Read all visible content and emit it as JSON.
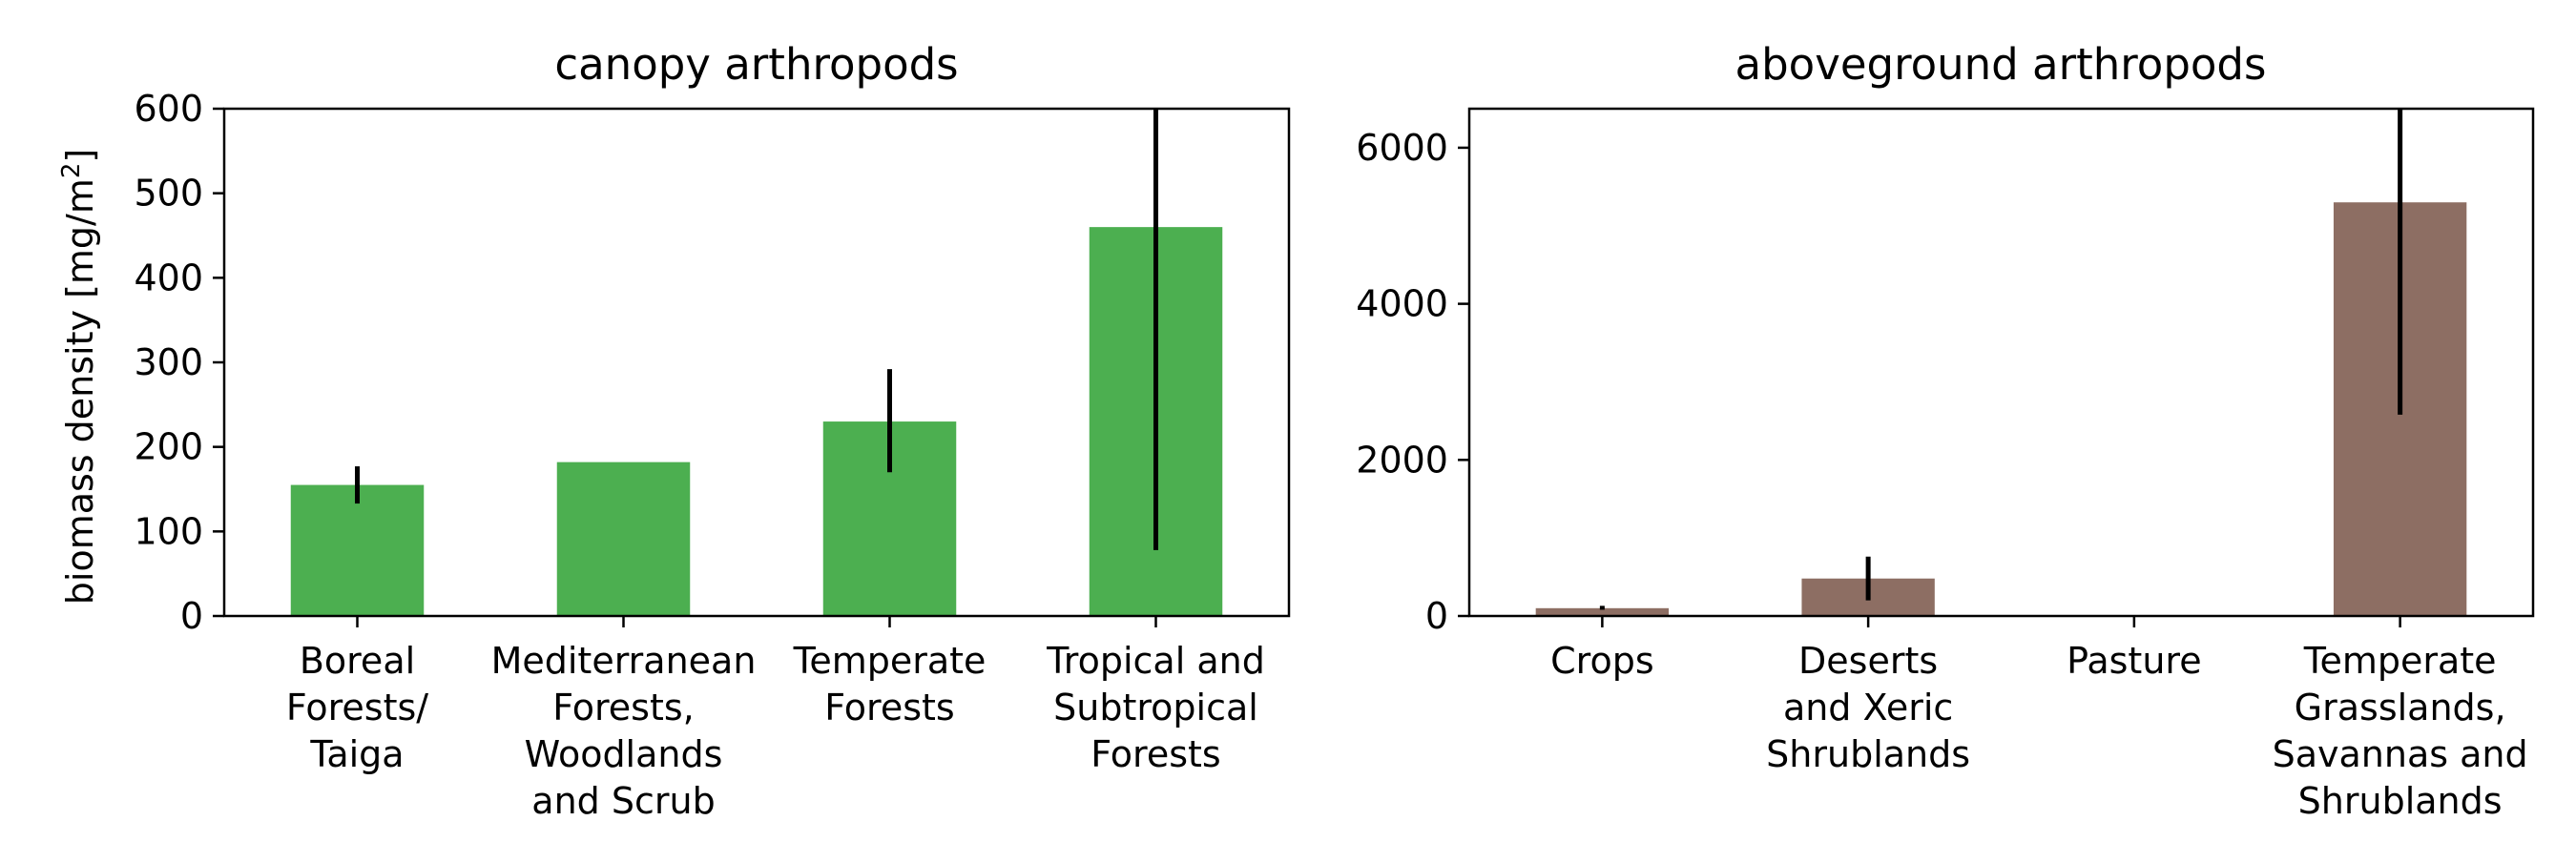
{
  "chart_data": [
    {
      "type": "bar",
      "title": "canopy arthropods",
      "ylabel": "biomass density [mg/m",
      "ylabel_sup": "2",
      "ylabel_end": "]",
      "ylim": [
        0,
        600
      ],
      "yticks": [
        "0",
        "100",
        "200",
        "300",
        "400",
        "500",
        "600"
      ],
      "ytick_values": [
        0,
        100,
        200,
        300,
        400,
        500,
        600
      ],
      "categories": [
        [
          "Boreal",
          "Forests/",
          "Taiga"
        ],
        [
          "Mediterranean",
          "Forests,",
          "Woodlands",
          "and Scrub"
        ],
        [
          "Temperate",
          "Forests"
        ],
        [
          "Tropical and",
          "Subtropical",
          "Forests"
        ]
      ],
      "values": [
        155,
        182,
        230,
        460
      ],
      "error_low": [
        133,
        null,
        170,
        78
      ],
      "error_high": [
        177,
        null,
        292,
        600
      ],
      "color": "#4caf50",
      "grid": false
    },
    {
      "type": "bar",
      "title": "aboveground arthropods",
      "ylabel": "",
      "ylim": [
        0,
        6500
      ],
      "yticks": [
        "0",
        "2000",
        "4000",
        "6000"
      ],
      "ytick_values": [
        0,
        2000,
        4000,
        6000
      ],
      "categories": [
        [
          "Crops"
        ],
        [
          "Deserts",
          "and Xeric",
          "Shrublands"
        ],
        [
          "Pasture"
        ],
        [
          "Temperate",
          "Grasslands,",
          "Savannas and",
          "Shrublands"
        ]
      ],
      "values": [
        100,
        480,
        0,
        5300
      ],
      "error_low": [
        80,
        200,
        null,
        2580
      ],
      "error_high": [
        130,
        760,
        null,
        6500
      ],
      "color": "#8d6e63",
      "grid": false
    }
  ]
}
